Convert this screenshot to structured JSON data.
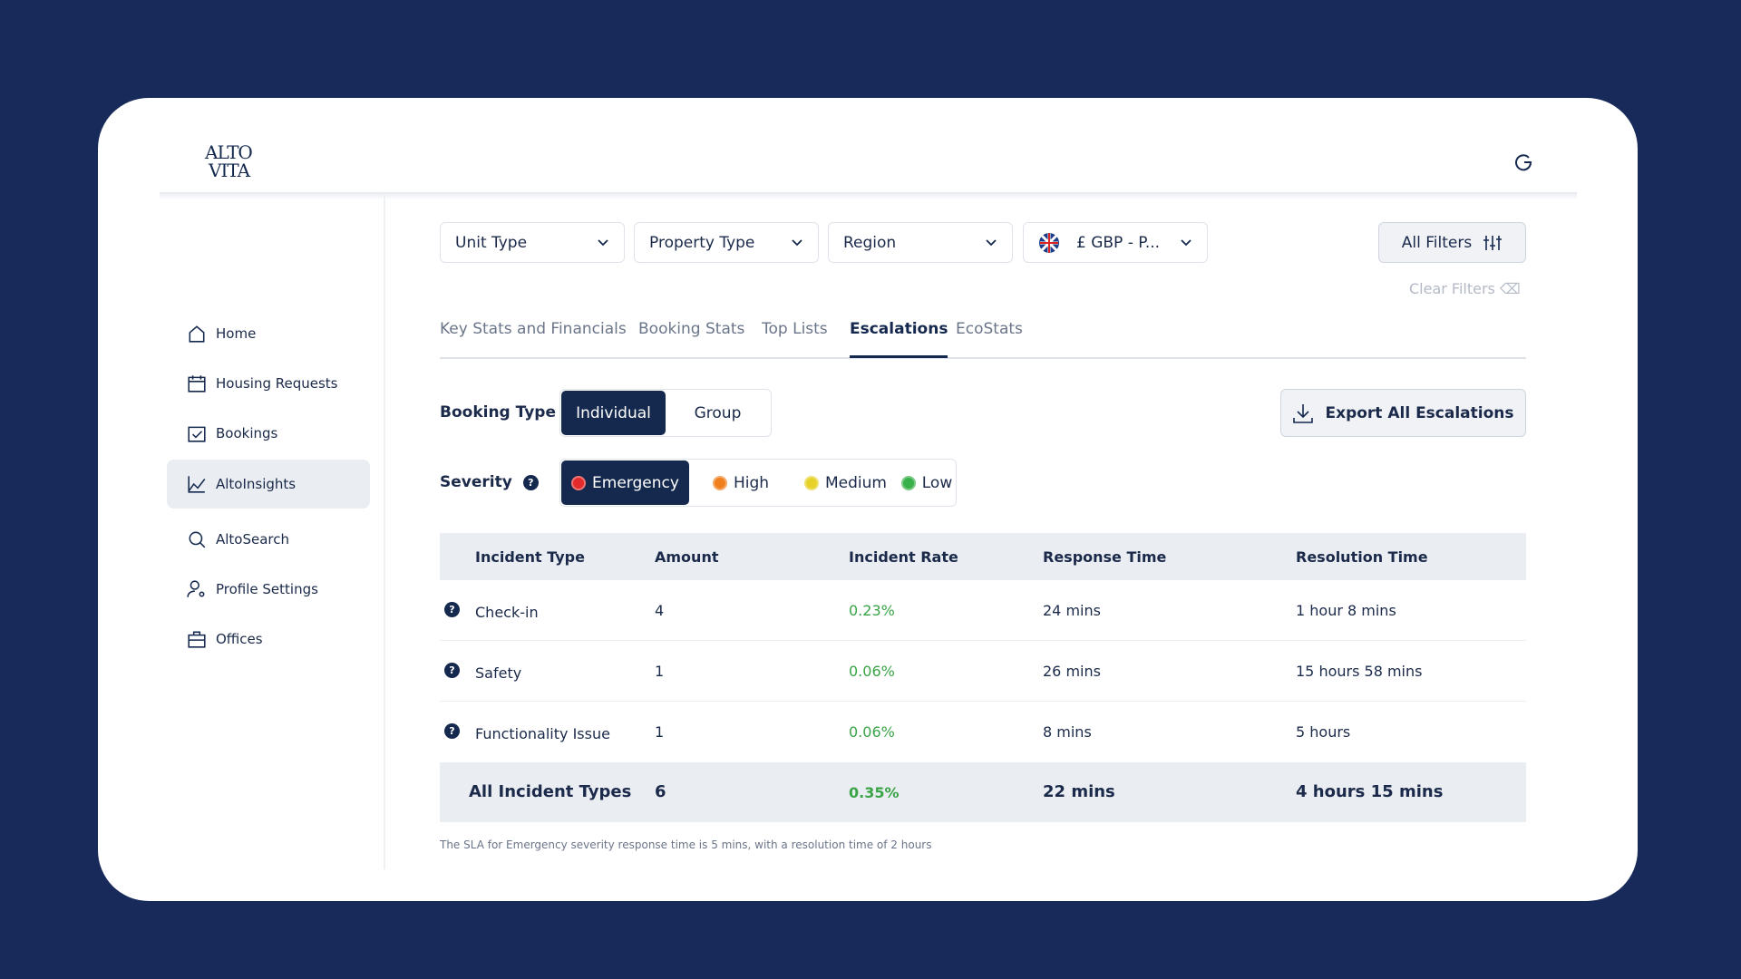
{
  "brand": {
    "line1": "ALTO",
    "line2": "VITA"
  },
  "nav": [
    "Home",
    "Housing Requests",
    "Bookings",
    "AltoInsights",
    "AltoSearch",
    "Profile Settings",
    "Offices"
  ],
  "nav_active": 3,
  "filters": [
    "Unit Type",
    "Property Type",
    "Region",
    "£ GBP - P..."
  ],
  "all_filters": "All Filters",
  "clear_filters": "Clear Filters",
  "tabs": [
    "Key Stats and Financials",
    "Booking Stats",
    "Top Lists",
    "Escalations",
    "EcoStats"
  ],
  "tab_active": 3,
  "booking_type": {
    "label": "Booking Type",
    "options": [
      "Individual",
      "Group"
    ],
    "selected": 0
  },
  "export": "Export All Escalations",
  "severity": {
    "label": "Severity",
    "options": [
      {
        "name": "Emergency",
        "color": "#e32b2b"
      },
      {
        "name": "High",
        "color": "#f07f1e"
      },
      {
        "name": "Medium",
        "color": "#e6d22a"
      },
      {
        "name": "Low",
        "color": "#39b04a"
      }
    ],
    "selected": 0
  },
  "table": {
    "columns": [
      "Incident Type",
      "Amount",
      "Incident Rate",
      "Response Time",
      "Resolution Time"
    ],
    "rows": [
      [
        "Check-in",
        "4",
        "0.23%",
        "24 mins",
        "1 hour 8 mins"
      ],
      [
        "Safety",
        "1",
        "0.06%",
        "26 mins",
        "15 hours 58 mins"
      ],
      [
        "Functionality Issue",
        "1",
        "0.06%",
        "8 mins",
        "5 hours"
      ]
    ],
    "total": [
      "All Incident Types",
      "6",
      "0.35%",
      "22 mins",
      "4 hours 15 mins"
    ]
  },
  "footnote": "The SLA for Emergency severity response time is 5 mins, with a resolution time of 2 hours"
}
